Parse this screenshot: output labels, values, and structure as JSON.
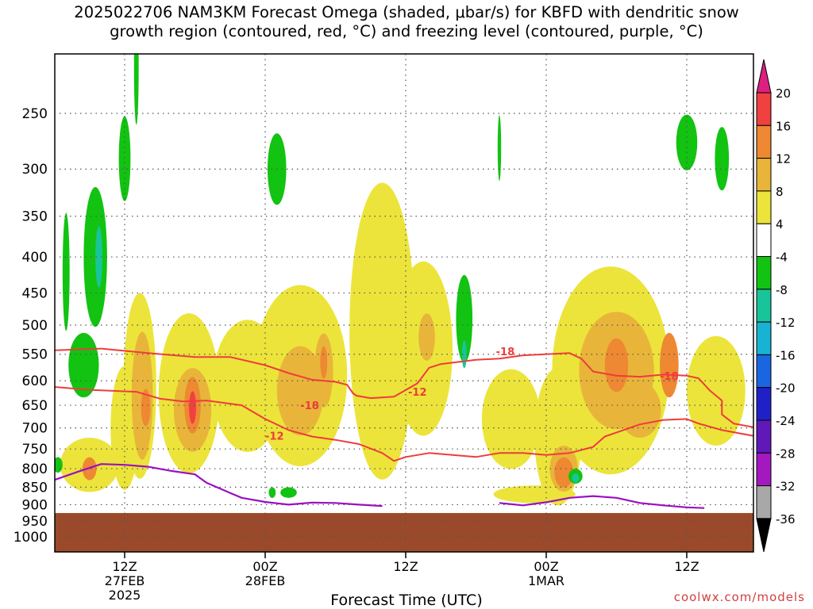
{
  "chart_data": {
    "type": "heatmap",
    "title_line1": "2025022706 NAM3KM Forecast Omega (shaded, μbar/s) for KBFD with dendritic snow",
    "title_line2": "growth region (contoured, red, °C) and freezing level (contoured, purple, °C)",
    "xlabel": "Forecast Time (UTC)",
    "x_hours": [
      6,
      57
    ],
    "x_ticks": [
      {
        "hour": 12,
        "label": "12Z",
        "sub1": "27FEB",
        "sub2": "2025"
      },
      {
        "hour": 24,
        "label": "00Z",
        "sub1": "28FEB",
        "sub2": ""
      },
      {
        "hour": 36,
        "label": "12Z",
        "sub1": "",
        "sub2": ""
      },
      {
        "hour": 48,
        "label": "00Z",
        "sub1": "1MAR",
        "sub2": ""
      },
      {
        "hour": 60,
        "label": "12Z",
        "sub1": "",
        "sub2": ""
      }
    ],
    "y_levels": [
      250,
      300,
      350,
      400,
      450,
      500,
      550,
      600,
      650,
      700,
      750,
      800,
      850,
      900,
      950,
      1000
    ],
    "ylim": [
      200,
      1050
    ],
    "grid": true,
    "colorbar": {
      "labels": [
        "20",
        "16",
        "12",
        "8",
        "4",
        "-4",
        "-8",
        "-12",
        "-16",
        "-20",
        "-24",
        "-28",
        "-32",
        "-36"
      ],
      "colors": [
        "#dc1f80",
        "#f04040",
        "#ee8832",
        "#e8b53a",
        "#ece43a",
        "#ffffff",
        "#12c312",
        "#18c59a",
        "#18b2d2",
        "#1a66e0",
        "#2020c8",
        "#6018b8",
        "#a418c0",
        "#a8a8a8",
        "#000000"
      ]
    },
    "contour_labels": [
      {
        "text": "-18",
        "hour": 27.8,
        "level": 650
      },
      {
        "text": "-12",
        "hour": 24.8,
        "level": 718
      },
      {
        "text": "-12",
        "hour": 37.0,
        "level": 622
      },
      {
        "text": "-18",
        "hour": 44.5,
        "level": 545
      },
      {
        "text": "-18",
        "hour": 58.5,
        "level": 590
      }
    ],
    "red_contours": [
      [
        [
          6,
          543
        ],
        [
          10,
          540
        ],
        [
          14,
          548
        ],
        [
          18,
          555
        ],
        [
          21,
          555
        ],
        [
          24,
          570
        ],
        [
          26,
          585
        ],
        [
          28,
          598
        ],
        [
          30,
          602
        ],
        [
          31,
          608
        ],
        [
          31.5,
          625
        ],
        [
          31.8,
          630
        ],
        [
          33,
          635
        ],
        [
          35,
          632
        ],
        [
          37,
          605
        ],
        [
          38,
          575
        ],
        [
          39,
          568
        ],
        [
          42,
          560
        ],
        [
          44,
          558
        ],
        [
          46,
          552
        ],
        [
          50,
          548
        ],
        [
          51,
          558
        ],
        [
          52,
          582
        ],
        [
          54,
          590
        ],
        [
          56,
          592
        ],
        [
          58,
          588
        ],
        [
          60,
          590
        ],
        [
          61,
          595
        ],
        [
          62,
          620
        ],
        [
          63,
          640
        ],
        [
          63,
          670
        ],
        [
          64,
          690
        ],
        [
          66,
          700
        ]
      ],
      [
        [
          6,
          612
        ],
        [
          9,
          618
        ],
        [
          11,
          620
        ],
        [
          13,
          622
        ],
        [
          15,
          636
        ],
        [
          17,
          642
        ],
        [
          19,
          640
        ],
        [
          22,
          650
        ],
        [
          24,
          680
        ],
        [
          26,
          705
        ],
        [
          28,
          720
        ],
        [
          30,
          728
        ],
        [
          32,
          738
        ],
        [
          34,
          760
        ],
        [
          35,
          780
        ],
        [
          36,
          770
        ],
        [
          38,
          760
        ],
        [
          40,
          765
        ],
        [
          42,
          770
        ],
        [
          44,
          760
        ],
        [
          46,
          760
        ],
        [
          48,
          765
        ],
        [
          50,
          760
        ],
        [
          52,
          745
        ],
        [
          53,
          720
        ],
        [
          56,
          692
        ],
        [
          58,
          682
        ],
        [
          60,
          680
        ],
        [
          61,
          690
        ],
        [
          63,
          705
        ],
        [
          66,
          720
        ]
      ]
    ],
    "purple_contours": [
      [
        [
          6,
          830
        ],
        [
          8,
          808
        ],
        [
          10,
          788
        ],
        [
          12,
          790
        ],
        [
          14,
          795
        ],
        [
          16,
          806
        ],
        [
          18,
          815
        ],
        [
          19,
          838
        ],
        [
          21,
          866
        ],
        [
          22,
          880
        ],
        [
          24,
          892
        ],
        [
          26,
          900
        ],
        [
          28,
          894
        ],
        [
          30,
          895
        ],
        [
          32,
          900
        ],
        [
          34,
          904
        ]
      ],
      [
        [
          44,
          895
        ],
        [
          46,
          902
        ],
        [
          48,
          893
        ],
        [
          50,
          880
        ],
        [
          52,
          875
        ],
        [
          54,
          880
        ],
        [
          56,
          895
        ],
        [
          58,
          902
        ],
        [
          60,
          908
        ],
        [
          61.5,
          910
        ]
      ]
    ],
    "terrain_top_level": 925,
    "terrain_color": "#9a4a2a",
    "blobs": [
      {
        "c": 4,
        "h": 17.5,
        "p": 625,
        "rx": 2.6,
        "ry": 160
      },
      {
        "c": 4,
        "h": 13.3,
        "p": 610,
        "rx": 1.4,
        "ry": 180
      },
      {
        "c": 4,
        "h": 12.0,
        "p": 700,
        "rx": 1.2,
        "ry": 140
      },
      {
        "c": 4,
        "h": 9.0,
        "p": 790,
        "rx": 2.5,
        "ry": 70
      },
      {
        "c": 4,
        "h": 27.0,
        "p": 590,
        "rx": 4.0,
        "ry": 170
      },
      {
        "c": 4,
        "h": 22.5,
        "p": 610,
        "rx": 3.0,
        "ry": 130
      },
      {
        "c": 4,
        "h": 34.0,
        "p": 510,
        "rx": 2.8,
        "ry": 230
      },
      {
        "c": 4,
        "h": 37.5,
        "p": 540,
        "rx": 2.5,
        "ry": 150
      },
      {
        "c": 4,
        "h": 45.0,
        "p": 680,
        "rx": 2.5,
        "ry": 110
      },
      {
        "c": 4,
        "h": 49.0,
        "p": 720,
        "rx": 2.0,
        "ry": 160
      },
      {
        "c": 4,
        "h": 53.5,
        "p": 580,
        "rx": 5.0,
        "ry": 190
      },
      {
        "c": 4,
        "h": 62.5,
        "p": 620,
        "rx": 2.5,
        "ry": 110
      },
      {
        "c": 4,
        "h": 47.0,
        "p": 870,
        "rx": 3.5,
        "ry": 25
      },
      {
        "c": 3,
        "h": 13.5,
        "p": 630,
        "rx": 0.9,
        "ry": 130
      },
      {
        "c": 3,
        "h": 17.8,
        "p": 660,
        "rx": 1.6,
        "ry": 90
      },
      {
        "c": 3,
        "h": 27.0,
        "p": 620,
        "rx": 2.0,
        "ry": 90
      },
      {
        "c": 3,
        "h": 29.0,
        "p": 580,
        "rx": 0.8,
        "ry": 70
      },
      {
        "c": 3,
        "h": 49.5,
        "p": 800,
        "rx": 1.2,
        "ry": 60
      },
      {
        "c": 3,
        "h": 54.0,
        "p": 580,
        "rx": 3.2,
        "ry": 110
      },
      {
        "c": 3,
        "h": 56.0,
        "p": 660,
        "rx": 1.8,
        "ry": 60
      },
      {
        "c": 3,
        "h": 37.8,
        "p": 520,
        "rx": 0.7,
        "ry": 40
      },
      {
        "c": 2,
        "h": 17.8,
        "p": 650,
        "rx": 0.7,
        "ry": 60
      },
      {
        "c": 2,
        "h": 13.8,
        "p": 655,
        "rx": 0.4,
        "ry": 40
      },
      {
        "c": 2,
        "h": 9.0,
        "p": 800,
        "rx": 0.6,
        "ry": 30
      },
      {
        "c": 2,
        "h": 49.5,
        "p": 810,
        "rx": 0.8,
        "ry": 40
      },
      {
        "c": 2,
        "h": 54.0,
        "p": 570,
        "rx": 1.0,
        "ry": 50
      },
      {
        "c": 2,
        "h": 58.5,
        "p": 570,
        "rx": 0.8,
        "ry": 60
      },
      {
        "c": 2,
        "h": 29.0,
        "p": 565,
        "rx": 0.3,
        "ry": 30
      },
      {
        "c": 1,
        "h": 17.8,
        "p": 655,
        "rx": 0.3,
        "ry": 35
      },
      {
        "c": 6,
        "h": 9.5,
        "p": 400,
        "rx": 1.0,
        "ry": 90
      },
      {
        "c": 6,
        "h": 8.5,
        "p": 570,
        "rx": 1.3,
        "ry": 60
      },
      {
        "c": 6,
        "h": 7.0,
        "p": 420,
        "rx": 0.3,
        "ry": 80
      },
      {
        "c": 6,
        "h": 12.0,
        "p": 290,
        "rx": 0.5,
        "ry": 40
      },
      {
        "c": 6,
        "h": 25.0,
        "p": 300,
        "rx": 0.8,
        "ry": 35
      },
      {
        "c": 6,
        "h": 13.0,
        "p": 215,
        "rx": 0.2,
        "ry": 40
      },
      {
        "c": 6,
        "h": 41.0,
        "p": 490,
        "rx": 0.7,
        "ry": 70
      },
      {
        "c": 6,
        "h": 60.0,
        "p": 275,
        "rx": 0.9,
        "ry": 25
      },
      {
        "c": 6,
        "h": 63.0,
        "p": 290,
        "rx": 0.6,
        "ry": 30
      },
      {
        "c": 6,
        "h": 50.5,
        "p": 820,
        "rx": 0.6,
        "ry": 20
      },
      {
        "c": 6,
        "h": 26.0,
        "p": 865,
        "rx": 0.7,
        "ry": 15
      },
      {
        "c": 6,
        "h": 44.0,
        "p": 280,
        "rx": 0.15,
        "ry": 30
      },
      {
        "c": 6,
        "h": 6.3,
        "p": 790,
        "rx": 0.4,
        "ry": 20
      },
      {
        "c": 6,
        "h": 24.6,
        "p": 865,
        "rx": 0.3,
        "ry": 15
      },
      {
        "c": 7,
        "h": 9.8,
        "p": 400,
        "rx": 0.3,
        "ry": 40
      },
      {
        "c": 7,
        "h": 41.0,
        "p": 550,
        "rx": 0.2,
        "ry": 25
      },
      {
        "c": 7,
        "h": 50.5,
        "p": 825,
        "rx": 0.3,
        "ry": 12
      }
    ]
  }
}
